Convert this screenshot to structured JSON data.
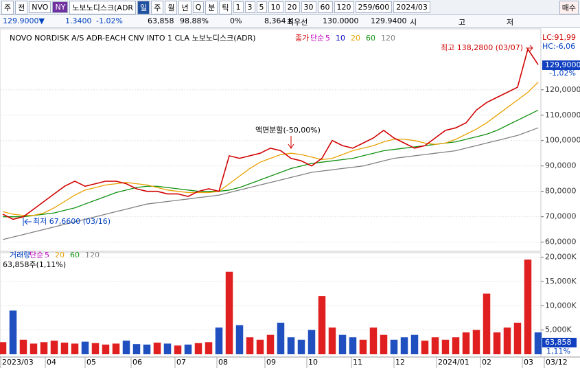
{
  "header": {
    "toolbar": [
      "주",
      "전",
      "NVO",
      "NY",
      "노보노디스크(ADR",
      "일",
      "주",
      "월",
      "년",
      "Q",
      "분",
      "틱",
      "1",
      "3",
      "5",
      "10",
      "20",
      "30",
      "60",
      "120",
      "259/600",
      "2024/03"
    ],
    "buy": "매수",
    "info": [
      "129.9000▼",
      "1.3400",
      "-1.02%",
      "63,858",
      "98.88%",
      "0%",
      "8,364 K",
      "최우선",
      "130.0000",
      "129.9400",
      "시",
      "고",
      "저"
    ]
  },
  "chart_data": [
    {
      "type": "line",
      "title": "NOVO NORDISK A/S ADR-EACH CNV INTO 1 CLA  노보노디스크(ADR)",
      "legend_prefix": "단순",
      "ma_legend": [
        {
          "name": "5",
          "color": "#c000c0"
        },
        {
          "name": "10",
          "color": "#0000c0"
        }
      ],
      "series": [
        {
          "name": "종가",
          "color": "#d00000",
          "values": [
            71,
            69,
            70,
            73,
            76,
            79,
            82,
            84,
            82,
            83,
            84,
            84,
            83,
            81,
            80,
            80,
            79,
            79,
            78,
            80,
            81,
            80,
            94,
            93,
            94,
            95,
            97,
            96,
            93,
            92,
            90,
            93,
            100,
            98,
            97,
            99,
            101,
            104,
            101,
            99,
            97,
            98,
            101,
            104,
            105,
            107,
            112,
            115,
            117,
            119,
            121,
            136,
            129.9
          ]
        },
        {
          "name": "20",
          "color": "#e8a000",
          "values": [
            72,
            71,
            70.5,
            70.5,
            71.5,
            73.5,
            76,
            78.5,
            80.5,
            81.5,
            82.5,
            83,
            83.5,
            83,
            82.5,
            81.5,
            80.5,
            80,
            79.5,
            79.5,
            79.5,
            80,
            83,
            86,
            89,
            91.5,
            93,
            94.5,
            95,
            94.5,
            93.5,
            92.5,
            93,
            94.5,
            96,
            97,
            98,
            99.5,
            100.5,
            100.5,
            100,
            99,
            98.5,
            99,
            100.5,
            102.5,
            104.5,
            107,
            110,
            113,
            116,
            119,
            123
          ]
        },
        {
          "name": "60",
          "color": "#109010",
          "values": [
            70,
            70,
            70,
            70.5,
            71,
            71.5,
            72.5,
            73.5,
            75,
            76.5,
            78,
            79.5,
            80.5,
            81.5,
            82,
            82,
            81.5,
            81,
            80.5,
            80,
            80,
            80,
            80.5,
            81.5,
            83,
            84.5,
            86,
            87.5,
            89,
            90,
            91,
            91.5,
            92,
            92.5,
            93,
            94,
            95,
            96,
            96.5,
            97,
            97.5,
            98,
            98.5,
            99,
            99.5,
            100.5,
            101.5,
            102.5,
            104,
            106,
            108,
            110,
            112
          ]
        },
        {
          "name": "120",
          "color": "#808080",
          "values": [
            61,
            62,
            63,
            64,
            65,
            66,
            67,
            68,
            69,
            70,
            71,
            72,
            73,
            74,
            75,
            75.5,
            76,
            76.5,
            77,
            77.5,
            78,
            78.5,
            79.5,
            80.5,
            81.5,
            82.5,
            83.5,
            84.5,
            85.5,
            86.5,
            87.5,
            88,
            88.5,
            89,
            89.5,
            90,
            91,
            92,
            93,
            93.5,
            94,
            94.5,
            95,
            95.5,
            96,
            97,
            98,
            99,
            100,
            101,
            102,
            103.5,
            105
          ]
        }
      ],
      "ylim": [
        57.2,
        138.6
      ],
      "yticks": [
        {
          "value": 120,
          "label": "120,0000"
        },
        {
          "value": 110,
          "label": "110,0000"
        },
        {
          "value": 100,
          "label": "100,0000"
        },
        {
          "value": 90,
          "label": "90,0000"
        },
        {
          "value": 80,
          "label": "80,0000"
        },
        {
          "value": 70,
          "label": "70,0000"
        },
        {
          "value": 60,
          "label": "60,0000"
        }
      ],
      "annotations": {
        "high": "최고 138,2800 (03/07)",
        "low": "최저 67,6600 (03/16)",
        "split": "액면분할(-50,00%)",
        "lc": "LC:91,99",
        "hc": "HC:-6,06",
        "last": "129,9000",
        "change": "-1,02%"
      }
    },
    {
      "type": "bar",
      "title": "거래량",
      "legend_prefix": "단순",
      "subtitle": "63,858주(1,11%)",
      "ma_legend": [
        {
          "name": "5",
          "color": "#c000c0"
        },
        {
          "name": "20",
          "color": "#e8a000"
        },
        {
          "name": "60",
          "color": "#109010"
        },
        {
          "name": "120",
          "color": "#808080"
        }
      ],
      "values": [
        2500,
        9000,
        3000,
        2200,
        2500,
        2800,
        2400,
        2200,
        2600,
        2300,
        2000,
        2200,
        2800,
        2100,
        2000,
        2400,
        2200,
        1800,
        2000,
        2300,
        2500,
        5500,
        17000,
        6000,
        3500,
        3000,
        4000,
        6500,
        3500,
        3000,
        5000,
        12000,
        5500,
        4000,
        3500,
        3000,
        5500,
        4000,
        3000,
        3500,
        4000,
        2800,
        3500,
        3000,
        3500,
        4500,
        5000,
        12500,
        4500,
        5500,
        6500,
        19500,
        4500
      ],
      "ylim": [
        0,
        20500
      ],
      "yticks": [
        {
          "value": 20000,
          "label": "20,000K"
        },
        {
          "value": 15000,
          "label": "15,000K"
        },
        {
          "value": 10000,
          "label": "10,000K"
        },
        {
          "value": 5000,
          "label": "5,000K"
        }
      ],
      "last": "63,858",
      "last_pct": "1,11%",
      "x_labels": [
        "2023/03",
        "04",
        "05",
        "06",
        "07",
        "08",
        "09",
        "10",
        "11",
        "12",
        "2024/01",
        "02",
        "03",
        "03/12"
      ]
    }
  ]
}
